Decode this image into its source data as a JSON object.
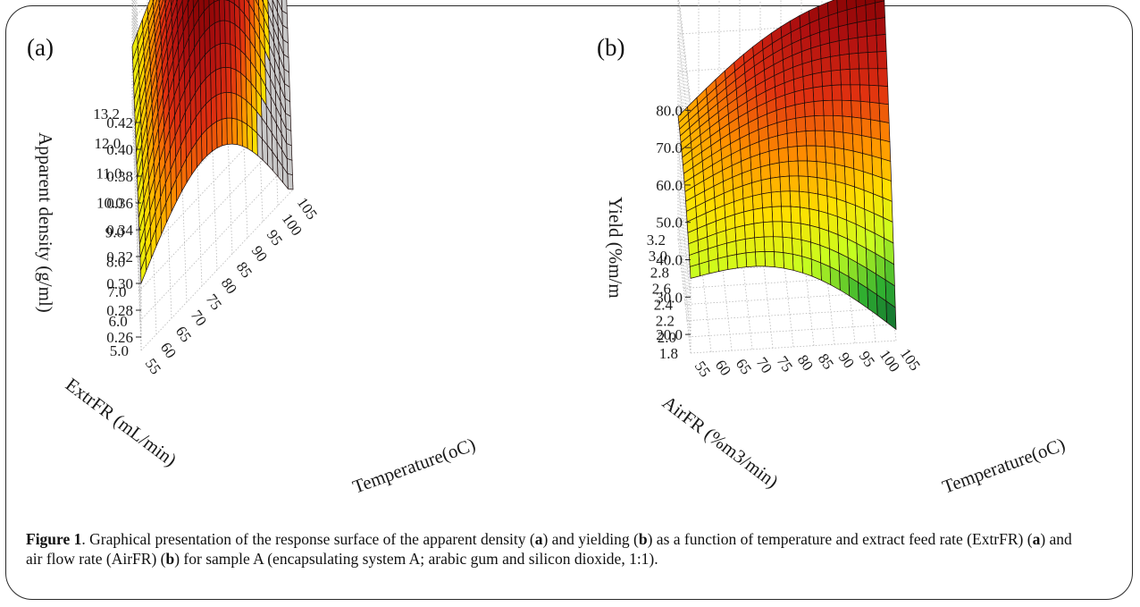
{
  "panels": {
    "a_label": "(a)",
    "b_label": "(b)"
  },
  "chart_data": [
    {
      "type": "surface3d",
      "panel": "(a)",
      "zlabel": "Apparent density (g/ml)",
      "xlabel": "Temperature(oC)",
      "ylabel": "ExtrFR (mL/min)",
      "x_ticks": [
        "55",
        "60",
        "65",
        "70",
        "75",
        "80",
        "85",
        "90",
        "95",
        "100",
        "105"
      ],
      "y_ticks": [
        "5.0",
        "6.0",
        "7.0",
        "8.0",
        "9.0",
        "10.0",
        "11.0",
        "12.0",
        "13.2"
      ],
      "z_ticks": [
        "0.26",
        "0.28",
        "0.30",
        "0.32",
        "0.34",
        "0.36",
        "0.38",
        "0.40",
        "0.42"
      ],
      "xlim": [
        55,
        105
      ],
      "ylim": [
        5.0,
        13.2
      ],
      "zlim": [
        0.25,
        0.42
      ],
      "corner_values": [
        {
          "temperature": 55,
          "extrFR": 5.0,
          "density": 0.3
        },
        {
          "temperature": 55,
          "extrFR": 13.2,
          "density": 0.3
        },
        {
          "temperature": 105,
          "extrFR": 13.2,
          "density": 0.27
        },
        {
          "temperature": 105,
          "extrFR": 5.0,
          "density": 0.25
        }
      ],
      "peak": {
        "temperature": 78,
        "extrFR": 9.5,
        "density": 0.39
      },
      "colormap": [
        "#7a0000",
        "#b01010",
        "#e03010",
        "#ff9000",
        "#ffe000",
        "#c8ff20",
        "#30b030",
        "#0a6030"
      ],
      "grid": true
    },
    {
      "type": "surface3d",
      "panel": "(b)",
      "zlabel": "Yield (%m/m",
      "xlabel": "Temperature(oC)",
      "ylabel": "AirFR (%m3/min)",
      "x_ticks": [
        "55",
        "60",
        "65",
        "70",
        "75",
        "80",
        "85",
        "90",
        "95",
        "100",
        "105"
      ],
      "y_ticks": [
        "1.8",
        "2.0",
        "2.2",
        "2.4",
        "2.6",
        "2.8",
        "3.0",
        "3.2"
      ],
      "z_ticks": [
        "20.0",
        "30.0",
        "40.0",
        "50.0",
        "60.0",
        "70.0",
        "80.0"
      ],
      "xlim": [
        55,
        105
      ],
      "ylim": [
        1.8,
        3.2
      ],
      "zlim": [
        15,
        82
      ],
      "corner_values": [
        {
          "temperature": 55,
          "airFR": 1.8,
          "yield": 35
        },
        {
          "temperature": 55,
          "airFR": 3.2,
          "yield": 48
        },
        {
          "temperature": 105,
          "airFR": 3.2,
          "yield": 80
        },
        {
          "temperature": 105,
          "airFR": 1.8,
          "yield": 18
        }
      ],
      "colormap": [
        "#7a0000",
        "#b01010",
        "#e03010",
        "#ff9000",
        "#ffe000",
        "#c8ff20",
        "#30b030",
        "#0a6030"
      ],
      "grid": true
    }
  ],
  "caption": {
    "label": "Figure 1",
    "segments": [
      {
        "t": ". Graphical presentation of the response surface of the apparent density (",
        "b": false
      },
      {
        "t": "a",
        "b": true
      },
      {
        "t": ") and yielding (",
        "b": false
      },
      {
        "t": "b",
        "b": true
      },
      {
        "t": ") as a function of temperature and extract feed rate (ExtrFR) (",
        "b": false
      },
      {
        "t": "a",
        "b": true
      },
      {
        "t": ") and air flow rate (AirFR) (",
        "b": false
      },
      {
        "t": "b",
        "b": true
      },
      {
        "t": ") for sample A (encapsulating system A; arabic gum  and silicon dioxide, 1:1).",
        "b": false
      }
    ]
  }
}
